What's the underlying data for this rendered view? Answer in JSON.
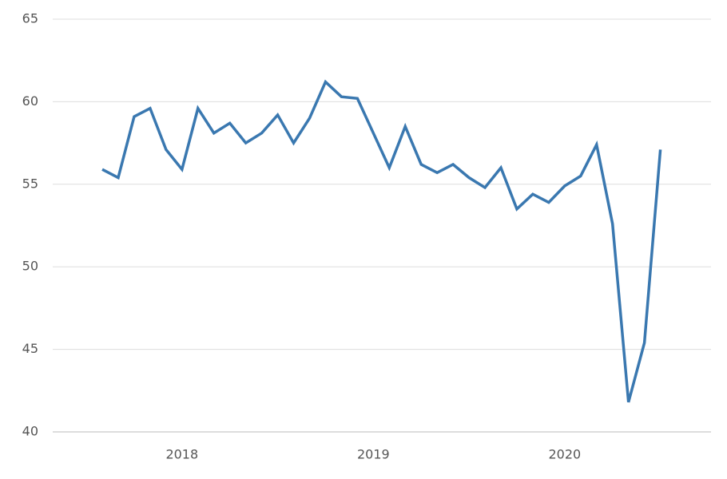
{
  "chart_data": {
    "type": "line",
    "categories": [
      null,
      null,
      null,
      null,
      null,
      "2018",
      null,
      null,
      null,
      null,
      null,
      null,
      null,
      null,
      null,
      null,
      null,
      "2019",
      null,
      null,
      null,
      null,
      null,
      null,
      null,
      null,
      null,
      null,
      null,
      "2020",
      null,
      null,
      null,
      null,
      null,
      null
    ],
    "series": [
      {
        "color": "#3a78b0",
        "values": [
          55.9,
          55.4,
          59.1,
          59.6,
          57.1,
          55.9,
          59.6,
          58.1,
          58.7,
          57.5,
          58.1,
          59.2,
          57.5,
          59.0,
          61.2,
          60.3,
          60.2,
          58.1,
          56.0,
          58.5,
          56.2,
          55.7,
          56.2,
          55.4,
          54.8,
          56.0,
          53.5,
          54.4,
          53.9,
          54.9,
          55.5,
          57.4,
          52.6,
          41.8,
          45.4,
          57.1
        ]
      }
    ],
    "ylim": [
      40,
      65
    ],
    "yticks": [
      40,
      45,
      50,
      55,
      60,
      65
    ],
    "grid": true
  }
}
